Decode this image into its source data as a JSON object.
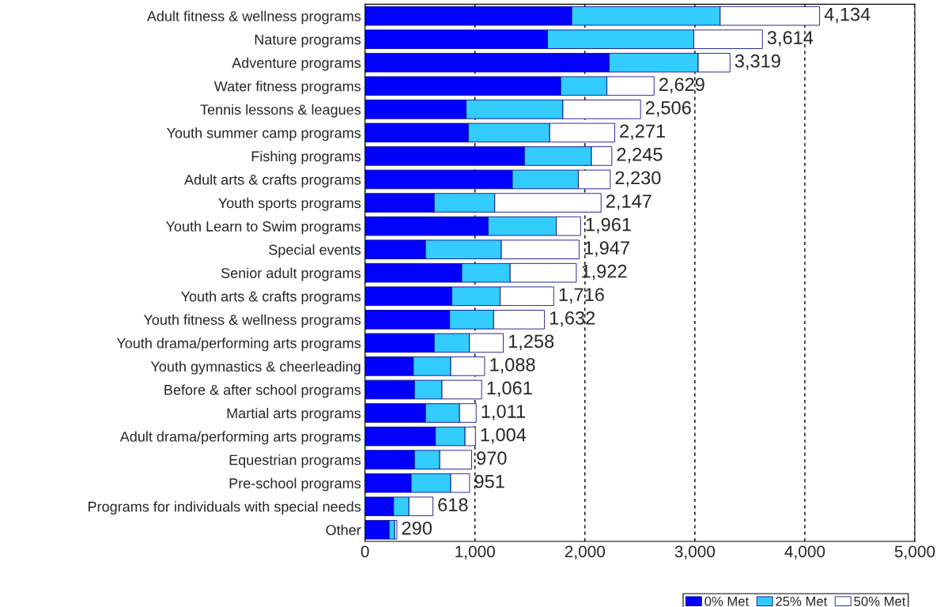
{
  "chart_data": {
    "type": "bar",
    "orientation": "horizontal",
    "stacked": true,
    "categories": [
      "Adult fitness & wellness programs",
      "Nature programs",
      "Adventure programs",
      "Water fitness programs",
      "Tennis lessons & leagues",
      "Youth summer camp programs",
      "Fishing programs",
      "Adult arts & crafts programs",
      "Youth sports programs",
      "Youth Learn to Swim programs",
      "Special events",
      "Senior adult programs",
      "Youth arts & crafts programs",
      "Youth fitness & wellness programs",
      "Youth drama/performing arts programs",
      "Youth gymnastics & cheerleading",
      "Before & after school programs",
      "Martial arts programs",
      "Adult drama/performing arts programs",
      "Equestrian programs",
      "Pre-school programs",
      "Programs for individuals with special needs",
      "Other"
    ],
    "series": [
      {
        "name": "0% Met",
        "color": "#0000ff",
        "values": [
          1880,
          1660,
          2220,
          1780,
          920,
          940,
          1450,
          1340,
          630,
          1120,
          550,
          880,
          790,
          770,
          630,
          440,
          450,
          550,
          640,
          450,
          420,
          260,
          220
        ]
      },
      {
        "name": "25% Met",
        "color": "#33ccff",
        "values": [
          1350,
          1330,
          810,
          420,
          880,
          740,
          610,
          600,
          550,
          620,
          690,
          440,
          440,
          400,
          320,
          340,
          250,
          310,
          270,
          230,
          360,
          140,
          50
        ]
      },
      {
        "name": "50% Met",
        "color": "#ffffff",
        "values": [
          904,
          624,
          289,
          429,
          706,
          591,
          185,
          290,
          967,
          221,
          707,
          602,
          486,
          462,
          308,
          308,
          361,
          151,
          94,
          290,
          171,
          218,
          20
        ]
      }
    ],
    "totals": [
      "4,134",
      "3,614",
      "3,319",
      "2,629",
      "2,506",
      "2,271",
      "2,245",
      "2,230",
      "2,147",
      "1,961",
      "1,947",
      "1,922",
      "1,716",
      "1,632",
      "1,258",
      "1,088",
      "1,061",
      "1,011",
      "1,004",
      "970",
      "951",
      "618",
      "290"
    ],
    "xlim": [
      0,
      5000
    ],
    "xticks": [
      0,
      {
        "value": 1000,
        "label": "1,000"
      },
      {
        "value": 2000,
        "label": "2,000"
      },
      {
        "value": 3000,
        "label": "3,000"
      },
      {
        "value": 4000,
        "label": "4,000"
      },
      {
        "value": 5000,
        "label": "5,000"
      }
    ],
    "grid": "x",
    "legend": "bottom right"
  }
}
